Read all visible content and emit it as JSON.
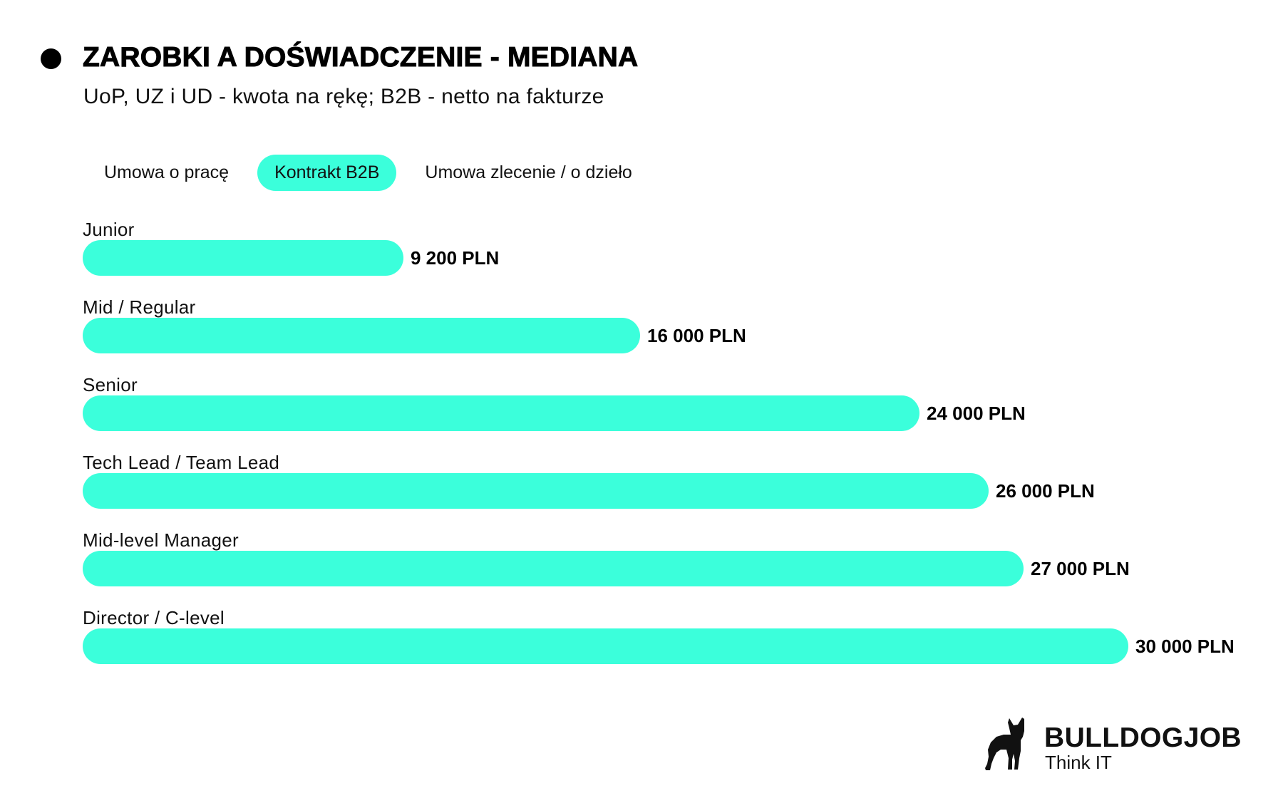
{
  "header": {
    "title": "ZAROBKI A DOŚWIADCZENIE - MEDIANA",
    "subtitle": "UoP, UZ i UD - kwota na rękę; B2B - netto na fakturze"
  },
  "tabs": [
    {
      "label": "Umowa o pracę",
      "active": false
    },
    {
      "label": "Kontrakt B2B",
      "active": true
    },
    {
      "label": "Umowa zlecenie / o dzieło",
      "active": false
    }
  ],
  "colors": {
    "accent": "#3bffdb",
    "text": "#000000",
    "background": "#ffffff"
  },
  "rows": [
    {
      "label": "Junior",
      "value": 9200,
      "value_label": "9 200 PLN"
    },
    {
      "label": "Mid / Regular",
      "value": 16000,
      "value_label": "16 000 PLN"
    },
    {
      "label": "Senior",
      "value": 24000,
      "value_label": "24 000 PLN"
    },
    {
      "label": "Tech Lead / Team Lead",
      "value": 26000,
      "value_label": "26 000 PLN"
    },
    {
      "label": "Mid-level Manager",
      "value": 27000,
      "value_label": "27 000 PLN"
    },
    {
      "label": "Director / C-level",
      "value": 30000,
      "value_label": "30 000 PLN"
    }
  ],
  "logo": {
    "icon": "bulldog-icon",
    "brand": "BULLDOGJOB",
    "tagline": "Think IT"
  },
  "chart_data": {
    "type": "bar",
    "orientation": "horizontal",
    "title": "ZAROBKI A DOŚWIADCZENIE - MEDIANA",
    "subtitle": "UoP, UZ i UD - kwota na rękę; B2B - netto na fakturze",
    "selected_series": "Kontrakt B2B",
    "categories": [
      "Junior",
      "Mid / Regular",
      "Senior",
      "Tech Lead / Team Lead",
      "Mid-level Manager",
      "Director / C-level"
    ],
    "values": [
      9200,
      16000,
      24000,
      26000,
      27000,
      30000
    ],
    "data_labels": [
      "9 200 PLN",
      "16 000 PLN",
      "24 000 PLN",
      "26 000 PLN",
      "27 000 PLN",
      "30 000 PLN"
    ],
    "unit": "PLN",
    "xlabel": "",
    "ylabel": "",
    "xlim": [
      0,
      30000
    ],
    "grid": false,
    "legend": "tabs: Umowa o pracę, Kontrakt B2B (selected), Umowa zlecenie / o dzieło"
  }
}
